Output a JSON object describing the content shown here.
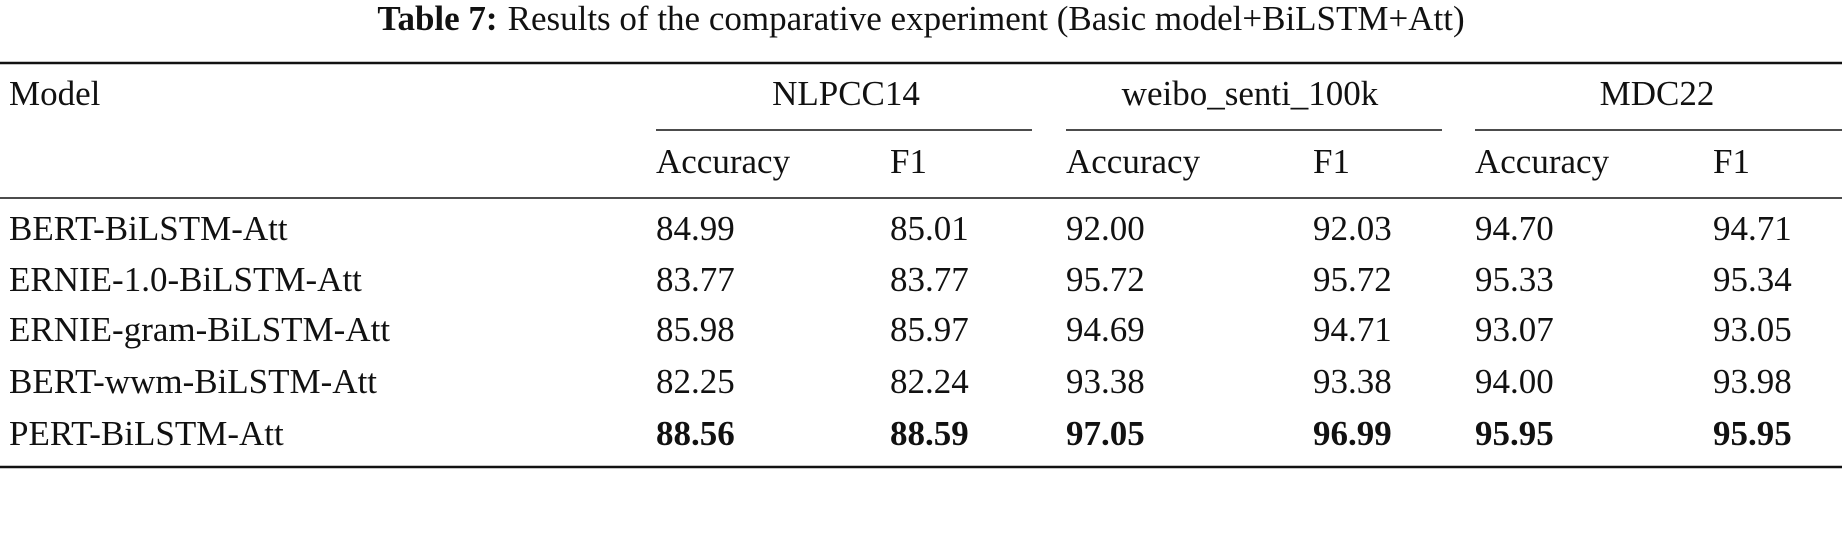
{
  "caption": {
    "label": "Table 7:",
    "text": "Results of the comparative experiment (Basic model+BiLSTM+Att)"
  },
  "table": {
    "header": {
      "model": "Model",
      "groups": [
        "NLPCC14",
        "weibo_senti_100k",
        "MDC22"
      ],
      "metrics": [
        "Accuracy",
        "F1",
        "Accuracy",
        "F1",
        "Accuracy",
        "F1"
      ]
    },
    "rows": [
      [
        "BERT-BiLSTM-Att",
        "84.99",
        "85.01",
        "92.00",
        "92.03",
        "94.70",
        "94.71"
      ],
      [
        "ERNIE-1.0-BiLSTM-Att",
        "83.77",
        "83.77",
        "95.72",
        "95.72",
        "95.33",
        "95.34"
      ],
      [
        "ERNIE-gram-BiLSTM-Att",
        "85.98",
        "85.97",
        "94.69",
        "94.71",
        "93.07",
        "93.05"
      ],
      [
        "BERT-wwm-BiLSTM-Att",
        "82.25",
        "82.24",
        "93.38",
        "93.38",
        "94.00",
        "93.98"
      ],
      [
        "PERT-BiLSTM-Att",
        "88.56",
        "88.59",
        "97.05",
        "96.99",
        "95.95",
        "95.95"
      ]
    ]
  }
}
